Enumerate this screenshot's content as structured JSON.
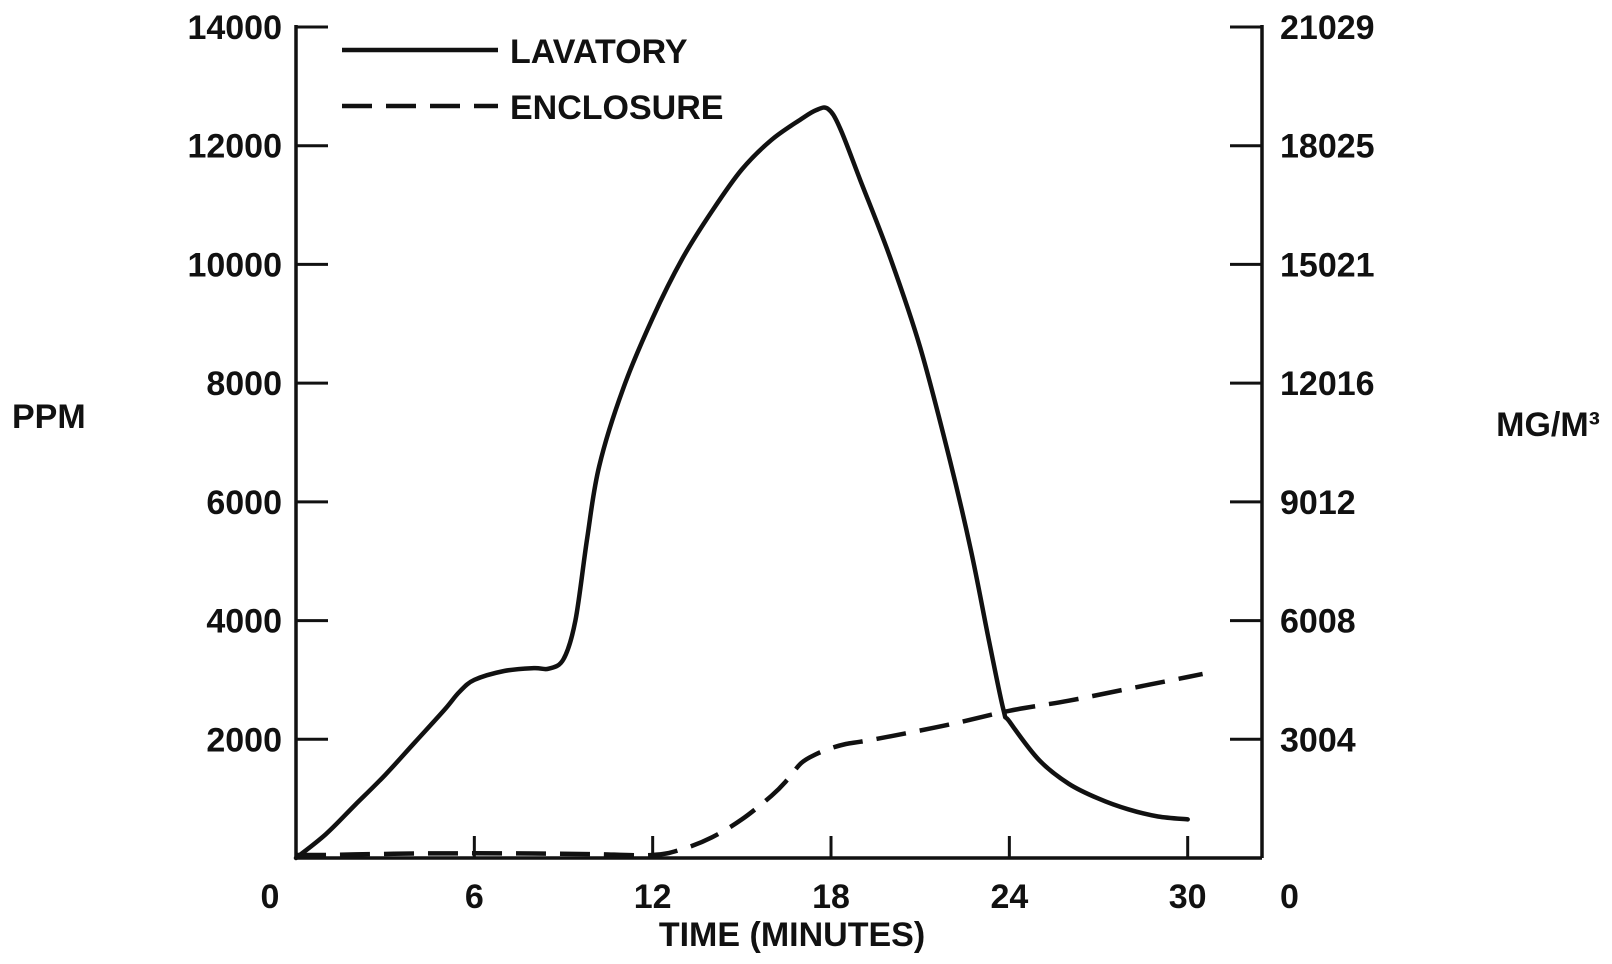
{
  "chart_data": {
    "type": "line",
    "xlabel": "TIME (MINUTES)",
    "ylabel": "PPM",
    "ylabel_right": "MG/M³",
    "xlim": [
      0,
      32.5
    ],
    "ylim": [
      0,
      14000
    ],
    "x_ticks": [
      0,
      6,
      12,
      18,
      24,
      30
    ],
    "x_tick_labels": [
      "0",
      "6",
      "12",
      "18",
      "24",
      "30"
    ],
    "y_ticks": [
      2000,
      4000,
      6000,
      8000,
      10000,
      12000,
      14000
    ],
    "y_tick_labels": [
      "2000",
      "4000",
      "6000",
      "8000",
      "10000",
      "12000",
      "14000"
    ],
    "y_right_ticks": [
      0,
      2000,
      4000,
      6000,
      8000,
      10000,
      12000,
      14000
    ],
    "y_right_tick_labels": [
      "0",
      "3004",
      "6008",
      "9012",
      "12016",
      "15021",
      "18025",
      "21029"
    ],
    "grid": false,
    "legend_position": "top-left",
    "series": [
      {
        "name": "LAVATORY",
        "style": "solid",
        "x": [
          0,
          1,
          2,
          3,
          4,
          5,
          5.5,
          6,
          7,
          8,
          8.5,
          9,
          9.4,
          9.8,
          10.2,
          11,
          12,
          13,
          14,
          15,
          16,
          17,
          17.5,
          17.9,
          18.3,
          19,
          20,
          21,
          22,
          22.7,
          23.3,
          23.8,
          24,
          25,
          26,
          27,
          28,
          29,
          30
        ],
        "y": [
          0,
          400,
          900,
          1400,
          1950,
          2500,
          2800,
          3000,
          3150,
          3200,
          3190,
          3350,
          4000,
          5400,
          6600,
          7900,
          9100,
          10100,
          10900,
          11600,
          12100,
          12450,
          12600,
          12620,
          12300,
          11400,
          10100,
          8600,
          6700,
          5200,
          3700,
          2500,
          2300,
          1650,
          1250,
          1000,
          820,
          700,
          650
        ]
      },
      {
        "name": "ENCLOSURE",
        "style": "dashed",
        "x": [
          0,
          1,
          2,
          4,
          6,
          8,
          10,
          12,
          13,
          14,
          15,
          16,
          16.5,
          17,
          17.5,
          18,
          18.5,
          19,
          20,
          22,
          24,
          26,
          28,
          30,
          30.5
        ],
        "y": [
          50,
          50,
          60,
          75,
          80,
          75,
          65,
          50,
          150,
          350,
          650,
          1050,
          1300,
          1600,
          1750,
          1850,
          1920,
          1960,
          2050,
          2250,
          2480,
          2650,
          2850,
          3050,
          3100
        ]
      }
    ]
  }
}
